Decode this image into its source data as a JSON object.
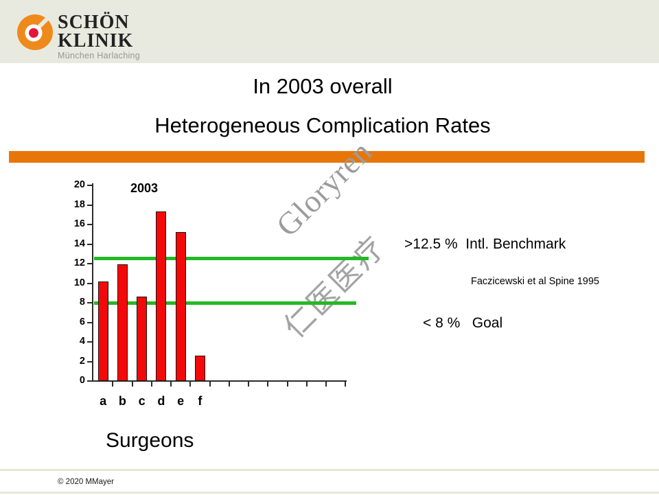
{
  "header": {
    "logo": {
      "wordmark_line1": "SCHÖN",
      "wordmark_line2": "KLINIK",
      "subtitle": "München Harlaching"
    }
  },
  "title": {
    "line1": "In 2003 overall",
    "line2": "Heterogeneous Complication Rates"
  },
  "colors": {
    "accent_orange": "#e87508",
    "header_beige": "#e9eadf",
    "bar_red": "#f30909",
    "ref_green": "#25b825",
    "watermark_gray": "#9c9c9c",
    "logo_disc_orange": "#ee8a1c",
    "logo_dot_red": "#e3173a",
    "axis_dark": "#2b2b2b"
  },
  "chart_data": {
    "type": "bar",
    "title": "2003",
    "categories": [
      "a",
      "b",
      "c",
      "d",
      "e",
      "f"
    ],
    "values": [
      10.2,
      11.9,
      8.6,
      17.3,
      15.2,
      2.6
    ],
    "xlabel": "Surgeons",
    "ylabel": "",
    "ylim": [
      0,
      20
    ],
    "ytick_step": 2,
    "x_tick_count": 13,
    "grid": false,
    "legend": "none",
    "bar_color": "#f30909",
    "ref_color": "#25b825",
    "ref_lines": [
      {
        "value": 12.5
      },
      {
        "value": 8
      }
    ]
  },
  "annotations": {
    "benchmark": ">12.5 %  Intl. Benchmark",
    "citation": "Faczicewski et al Spine 1995",
    "goal": "< 8 %   Goal"
  },
  "watermark": {
    "line1": "Gloryren",
    "line2": "仁医医疗"
  },
  "footer": {
    "copyright": "© 2020 MMayer"
  }
}
